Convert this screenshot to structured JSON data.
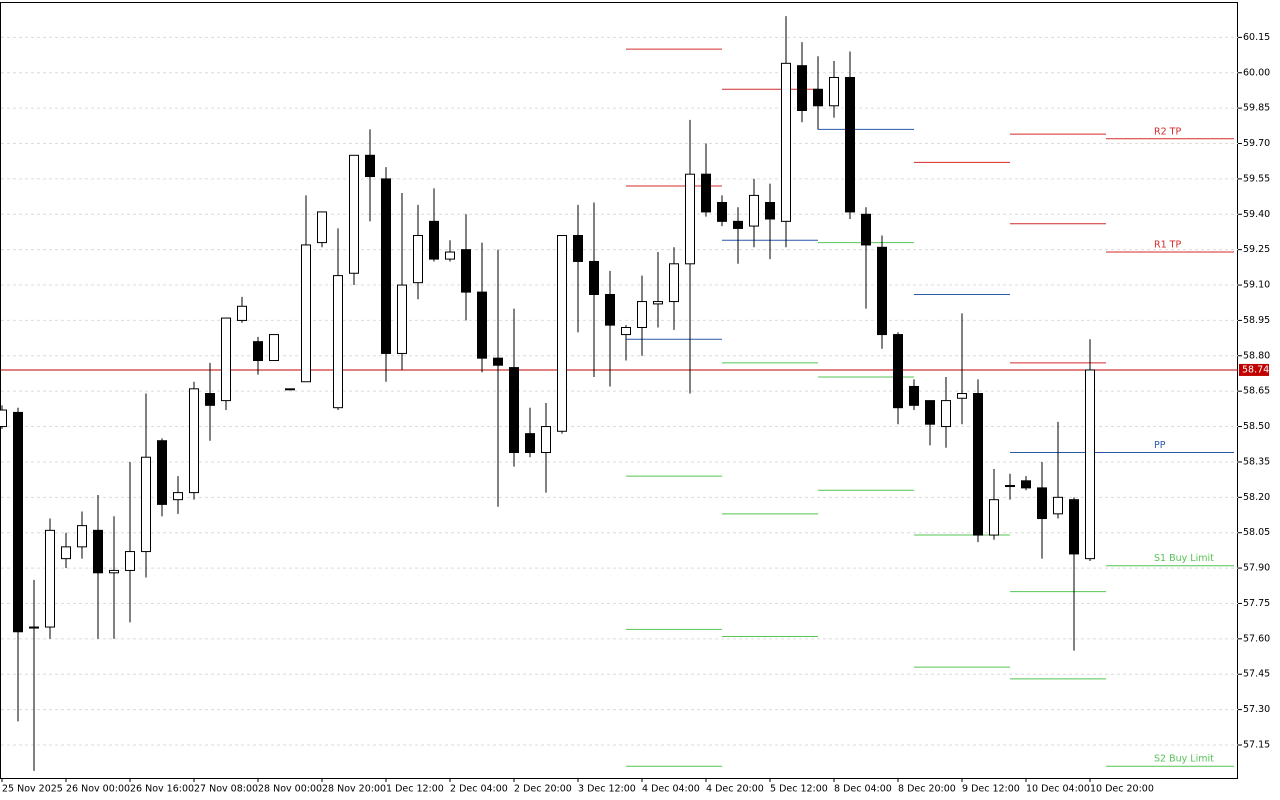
{
  "chart_data": {
    "type": "candlestick",
    "categories": [
      "25 Nov 2025",
      null,
      null,
      null,
      "26 Nov 00:00",
      null,
      null,
      null,
      "26 Nov 16:00",
      null,
      null,
      null,
      "27 Nov 08:00",
      null,
      null,
      null,
      "28 Nov 00:00",
      null,
      null,
      null,
      "28 Nov 20:00",
      null,
      null,
      null,
      "1 Dec 12:00",
      null,
      null,
      null,
      "2 Dec 04:00",
      null,
      null,
      null,
      "2 Dec 20:00",
      null,
      null,
      null,
      "3 Dec 12:00",
      null,
      null,
      null,
      "4 Dec 04:00",
      null,
      null,
      null,
      "4 Dec 20:00",
      null,
      null,
      null,
      "5 Dec 12:00",
      null,
      null,
      null,
      "8 Dec 04:00",
      null,
      null,
      null,
      "8 Dec 20:00",
      null,
      null,
      null,
      "9 Dec 12:00",
      null,
      null,
      null,
      "10 Dec 04:00",
      null,
      null,
      null,
      "10 Dec 20:00"
    ],
    "open": [
      58.5,
      58.56,
      57.65,
      57.65,
      57.94,
      57.99,
      58.06,
      57.88,
      57.89,
      57.97,
      58.44,
      58.19,
      58.22,
      58.64,
      58.61,
      58.95,
      58.86,
      58.78,
      58.66,
      58.69,
      59.28,
      58.58,
      59.15,
      59.65,
      59.55,
      58.81,
      59.11,
      59.37,
      59.21,
      59.25,
      59.07,
      58.79,
      58.75,
      58.47,
      58.39,
      58.48,
      59.31,
      59.2,
      59.06,
      58.89,
      58.92,
      59.02,
      59.03,
      59.19,
      59.57,
      59.45,
      59.37,
      59.35,
      59.45,
      59.37,
      60.03,
      59.93,
      59.86,
      59.98,
      59.4,
      59.26,
      58.89,
      58.67,
      58.61,
      58.5,
      58.62,
      58.64,
      58.04,
      58.25,
      58.27,
      58.24,
      58.13,
      58.19,
      57.94
    ],
    "high": [
      58.59,
      58.58,
      57.85,
      58.11,
      58.05,
      58.14,
      58.21,
      58.12,
      58.35,
      58.64,
      58.45,
      58.29,
      58.69,
      58.77,
      58.96,
      59.05,
      58.88,
      58.89,
      58.66,
      59.48,
      59.41,
      59.34,
      59.65,
      59.76,
      59.6,
      59.49,
      59.44,
      59.51,
      59.29,
      59.4,
      59.28,
      59.25,
      59.0,
      58.58,
      58.6,
      59.31,
      59.44,
      59.45,
      59.16,
      58.93,
      59.14,
      59.24,
      59.26,
      59.8,
      59.7,
      59.48,
      59.43,
      59.55,
      59.53,
      60.24,
      60.13,
      60.07,
      60.05,
      60.09,
      59.43,
      59.31,
      58.9,
      58.7,
      58.61,
      58.71,
      58.98,
      58.7,
      58.32,
      58.3,
      58.29,
      58.35,
      58.52,
      58.2,
      58.87
    ],
    "low": [
      58.49,
      57.25,
      57.04,
      57.6,
      57.9,
      57.94,
      57.6,
      57.6,
      57.67,
      57.86,
      58.12,
      58.13,
      58.19,
      58.44,
      58.57,
      58.94,
      58.72,
      58.78,
      58.66,
      58.69,
      59.26,
      58.57,
      59.1,
      59.37,
      58.69,
      58.74,
      59.04,
      59.2,
      59.2,
      58.95,
      58.73,
      58.16,
      58.33,
      58.37,
      58.22,
      58.47,
      58.9,
      58.71,
      58.67,
      58.78,
      58.8,
      58.92,
      58.91,
      58.64,
      59.39,
      59.35,
      59.19,
      59.26,
      59.21,
      59.26,
      59.79,
      59.76,
      59.81,
      59.38,
      59.0,
      58.83,
      58.51,
      58.57,
      58.42,
      58.41,
      58.51,
      58.01,
      58.02,
      58.19,
      58.23,
      57.94,
      58.11,
      57.55,
      57.93
    ],
    "close": [
      58.57,
      57.63,
      57.65,
      58.06,
      57.99,
      58.08,
      57.88,
      57.89,
      57.97,
      58.37,
      58.17,
      58.22,
      58.66,
      58.59,
      58.96,
      59.01,
      58.78,
      58.89,
      58.66,
      59.27,
      59.41,
      59.14,
      59.65,
      59.56,
      58.81,
      59.1,
      59.31,
      59.21,
      59.24,
      59.07,
      58.79,
      58.76,
      58.39,
      58.39,
      58.5,
      59.31,
      59.2,
      59.06,
      58.93,
      58.92,
      59.03,
      59.03,
      59.19,
      59.57,
      59.41,
      59.37,
      59.34,
      59.48,
      59.38,
      60.04,
      59.84,
      59.86,
      59.98,
      59.41,
      59.27,
      58.89,
      58.58,
      58.59,
      58.51,
      58.61,
      58.64,
      58.04,
      58.19,
      58.25,
      58.24,
      58.11,
      58.2,
      57.96,
      58.74
    ],
    "up_color": "#ffffff",
    "down_color": "#000000",
    "last_price": 58.74,
    "last_price_color": "#c00000",
    "ylim": [
      57.01,
      60.3
    ],
    "yticks": [
      57.15,
      {
        "value": 57.3,
        "label": "57.30"
      },
      57.45,
      {
        "value": 57.6,
        "label": "57.60"
      },
      57.75,
      {
        "value": 57.9,
        "label": "57.90"
      },
      58.05,
      {
        "value": 58.2,
        "label": "58.20"
      },
      58.35,
      {
        "value": 58.5,
        "label": "58.50"
      },
      58.65,
      {
        "value": 58.8,
        "label": "58.80"
      },
      58.95,
      {
        "value": 59.1,
        "label": "59.10"
      },
      59.25,
      {
        "value": 59.4,
        "label": "59.40"
      },
      59.55,
      {
        "value": 59.7,
        "label": "59.70"
      },
      59.85,
      {
        "value": 60,
        "label": "60.00"
      },
      60.15
    ],
    "grid": true,
    "pivot_days": [
      [
        {
          "value": 60.1,
          "color": "#d42a2a"
        },
        {
          "value": 59.52,
          "color": "#d42a2a"
        },
        {
          "value": 58.87,
          "color": "#2a5aa8"
        },
        {
          "value": 58.29,
          "color": "#55c455"
        },
        {
          "value": 57.64,
          "color": "#55c455"
        },
        {
          "value": 57.06,
          "color": "#55c455"
        }
      ],
      [
        {
          "value": 59.93,
          "color": "#d42a2a"
        },
        {
          "value": 59.29,
          "color": "#2a5aa8"
        },
        {
          "value": 58.77,
          "color": "#55c455"
        },
        {
          "value": 58.13,
          "color": "#55c455"
        },
        {
          "value": 57.61,
          "color": "#55c455"
        }
      ],
      [
        {
          "value": 59.76,
          "color": "#2a5aa8"
        },
        {
          "value": 59.28,
          "color": "#55c455"
        },
        {
          "value": 58.71,
          "color": "#55c455"
        },
        {
          "value": 58.23,
          "color": "#55c455"
        }
      ],
      [
        {
          "value": 59.62,
          "color": "#d42a2a"
        },
        {
          "value": 59.06,
          "color": "#2a5aa8"
        },
        {
          "value": 58.04,
          "color": "#55c455"
        },
        {
          "value": 57.48,
          "color": "#55c455"
        }
      ],
      [
        {
          "value": 59.74,
          "color": "#d42a2a"
        },
        {
          "value": 59.36,
          "color": "#d42a2a"
        },
        {
          "value": 58.77,
          "color": "#d42a2a"
        },
        {
          "value": 58.39,
          "color": "#2a5aa8"
        },
        {
          "value": 57.8,
          "color": "#55c455"
        },
        {
          "value": 57.43,
          "color": "#55c455"
        }
      ],
      [
        {
          "value": 59.72,
          "color": "#d42a2a",
          "label": "R2 TP"
        },
        {
          "value": 59.24,
          "color": "#d42a2a",
          "label": "R1 TP"
        },
        {
          "value": 58.39,
          "color": "#2a5aa8",
          "label": "PP"
        },
        {
          "value": 57.91,
          "color": "#55c455",
          "label": "S1 Buy Limit"
        },
        {
          "value": 57.06,
          "color": "#55c455",
          "label": "S2 Buy Limit"
        }
      ]
    ]
  }
}
